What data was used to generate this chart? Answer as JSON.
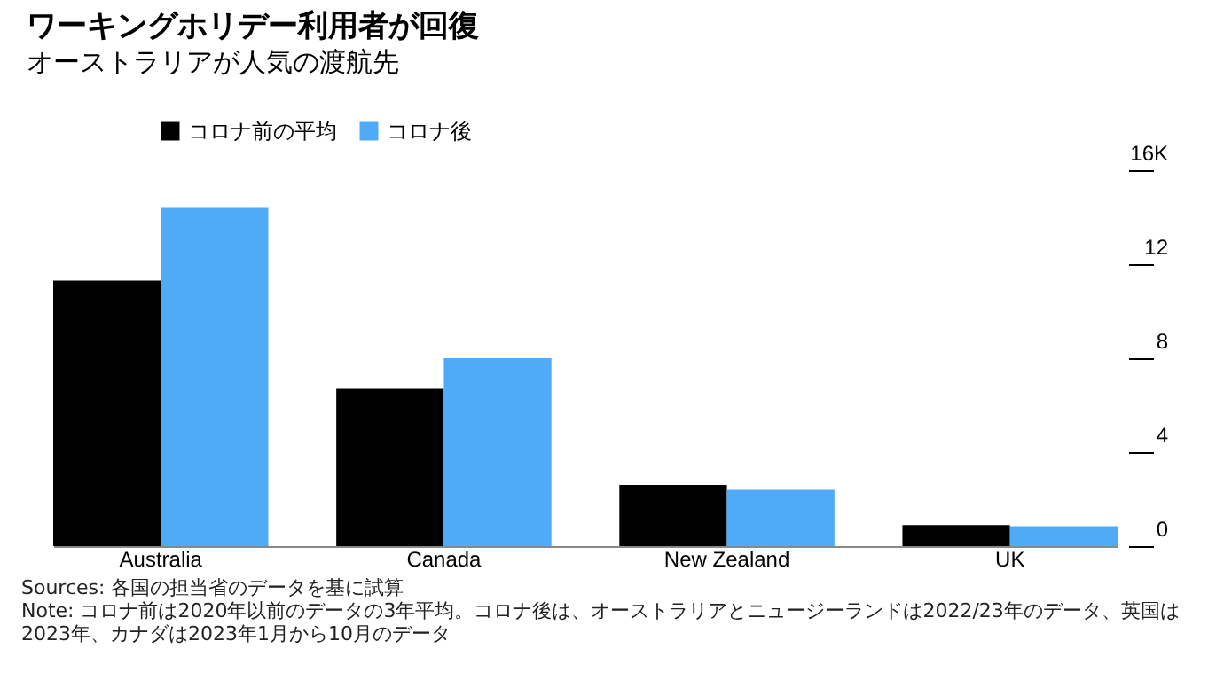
{
  "chart_data": {
    "type": "bar",
    "title": "ワーキングホリデー利用者が回復",
    "subtitle": "オーストラリアが人気の渡航先",
    "categories": [
      "Australia",
      "Canada",
      "New Zealand",
      "UK"
    ],
    "series": [
      {
        "name": "コロナ前の平均",
        "color": "#000000",
        "values": [
          11.3,
          6.7,
          2.6,
          0.9
        ]
      },
      {
        "name": "コロナ後",
        "color": "#4fabf7",
        "values": [
          14.4,
          8.0,
          2.4,
          0.85
        ]
      }
    ],
    "ylim": [
      0,
      16
    ],
    "yticks": [
      0,
      4,
      8,
      12,
      {
        "value": 16,
        "label": "16K"
      }
    ],
    "grid": false,
    "legend": "top left",
    "annotations": [
      "Sources: 各国の担当省のデータを基に試算",
      "Note: コロナ前は2020年以前のデータの3年平均。コロナ後は、オーストラリアとニュージーランドは2022/23年のデータ、英国は2023年、カナダは2023年1月から10月のデータ"
    ]
  }
}
